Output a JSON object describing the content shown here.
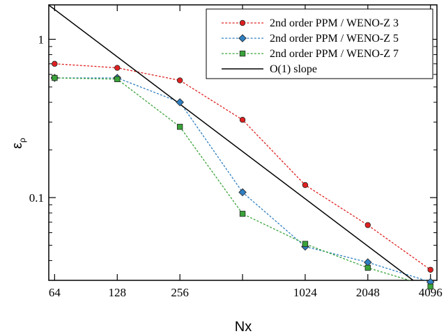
{
  "chart_data": {
    "type": "line",
    "xscale": "log2",
    "yscale": "log10",
    "xlabel": "Nx",
    "ylabel": "ε",
    "ylabel_sub": "ρ",
    "xlim": [
      60,
      4400
    ],
    "ylim": [
      0.03,
      1.65
    ],
    "xticks": [
      64,
      128,
      256,
      512,
      1024,
      2048,
      4096
    ],
    "xtick_labels": [
      "64",
      "128",
      "256",
      "",
      "1024",
      "2048",
      "4096"
    ],
    "yticks": [
      0.1,
      1
    ],
    "ytick_labels": [
      "0.1",
      "1"
    ],
    "grid": false,
    "legend_position": "top-right",
    "series": [
      {
        "name": "2nd order PPM / WENO-Z 3",
        "color": "#e02020",
        "marker": "circle",
        "linestyle": "dotted",
        "x": [
          64,
          128,
          256,
          512,
          1024,
          2048,
          4096
        ],
        "y": [
          0.7,
          0.66,
          0.55,
          0.31,
          0.12,
          0.067,
          0.035
        ]
      },
      {
        "name": "2nd order PPM / WENO-Z 5",
        "color": "#2f7fc1",
        "marker": "diamond",
        "linestyle": "dotted",
        "x": [
          64,
          128,
          256,
          512,
          1024,
          2048,
          4096
        ],
        "y": [
          0.57,
          0.57,
          0.4,
          0.108,
          0.049,
          0.039,
          0.0293
        ]
      },
      {
        "name": "2nd order PPM / WENO-Z 7",
        "color": "#3aa33a",
        "marker": "square",
        "linestyle": "dotted",
        "x": [
          64,
          128,
          256,
          512,
          1024,
          2048,
          4096
        ],
        "y": [
          0.57,
          0.56,
          0.28,
          0.079,
          0.051,
          0.036,
          0.0274
        ]
      },
      {
        "name": "O(1) slope",
        "color": "#000000",
        "marker": "none",
        "linestyle": "solid",
        "x": [
          58,
          4500
        ],
        "y": [
          1.7,
          0.0226
        ]
      }
    ]
  }
}
